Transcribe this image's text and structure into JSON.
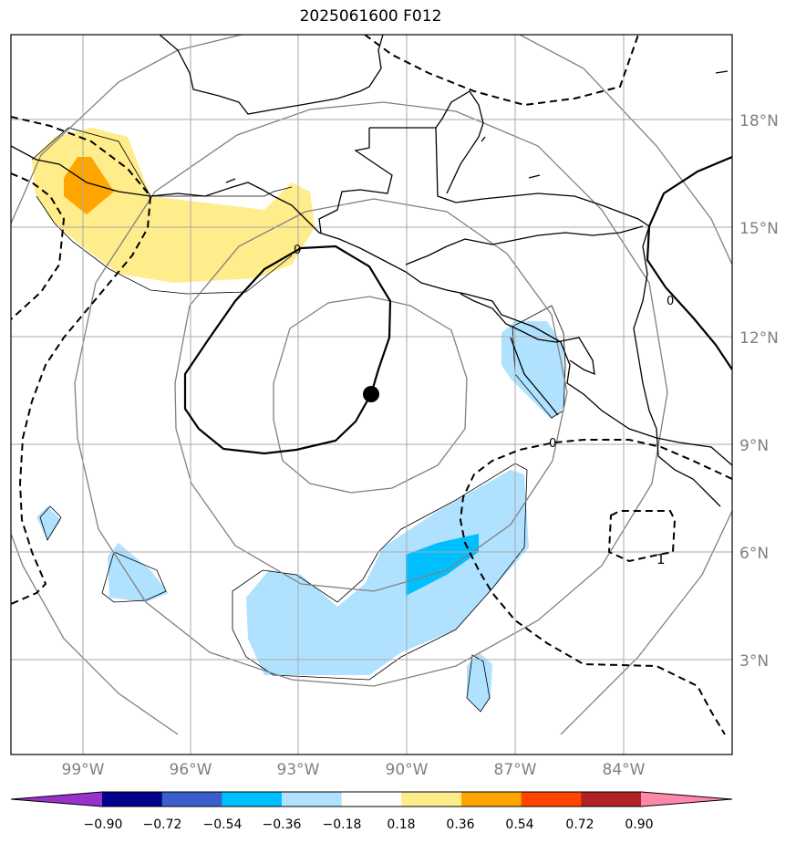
{
  "title": "2025061600 F012",
  "lat_labels": [
    "18°N",
    "15°N",
    "12°N",
    "9°N",
    "6°N",
    "3°N"
  ],
  "lon_labels": [
    "99°W",
    "96°W",
    "93°W",
    "90°W",
    "87°W",
    "84°W"
  ],
  "contour_labels": [
    "0",
    "0",
    "0",
    "0",
    "1"
  ],
  "colorbar": {
    "ticks": [
      "−0.90",
      "−0.72",
      "−0.54",
      "−0.36",
      "−0.18",
      "0.18",
      "0.36",
      "0.54",
      "0.72",
      "0.90"
    ],
    "colors": [
      "#9932cc",
      "#00008b",
      "#3a5fcd",
      "#00bfff",
      "#b0e2ff",
      "#ffffff",
      "#ffec8b",
      "#ffa500",
      "#ff4500",
      "#b22222",
      "#ff88aa"
    ]
  },
  "colors": {
    "grid": "#a9a9a9",
    "gray_contours": "#808080",
    "track": "#000000"
  }
}
